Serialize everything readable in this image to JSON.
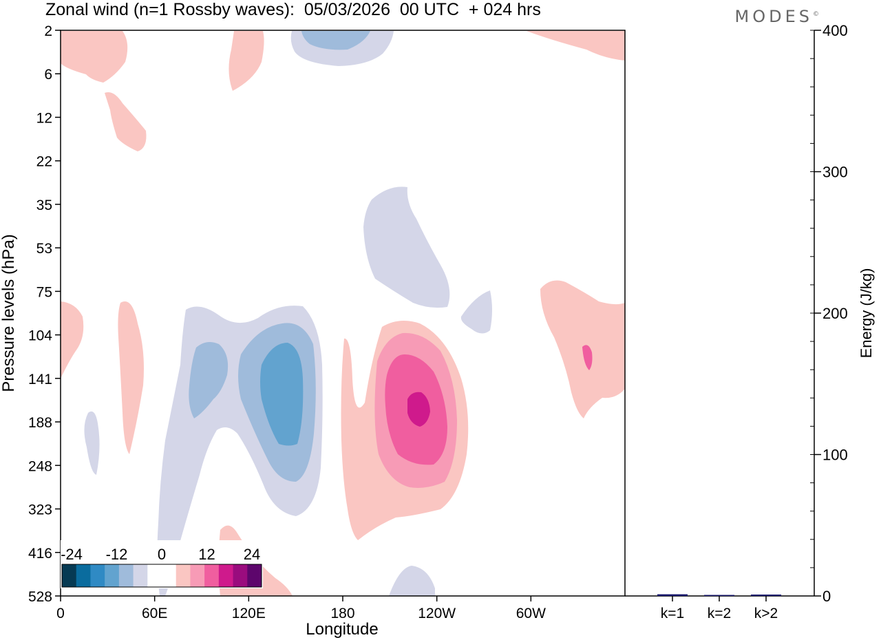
{
  "title": "Zonal wind (n=1 Rossby waves):  05/03/2026  00 UTC  + 024 hrs",
  "logo": "MODES",
  "logo_mark": "©",
  "chart_data": [
    {
      "type": "contour",
      "xlabel": "Longitude",
      "ylabel": "Pressure levels (hPa)",
      "x_ticks": [
        "0",
        "60E",
        "120E",
        "180",
        "120W",
        "60W"
      ],
      "x_tick_values_deg": [
        0,
        60,
        120,
        180,
        240,
        300
      ],
      "x_range_deg": [
        0,
        360
      ],
      "y_ticks": [
        "2",
        "6",
        "12",
        "22",
        "35",
        "53",
        "75",
        "104",
        "141",
        "188",
        "248",
        "323",
        "416",
        "528"
      ],
      "colorbar": {
        "labels": [
          "-24",
          "-12",
          "0",
          "12",
          "24"
        ],
        "colors": [
          "#063a53",
          "#0a6c9e",
          "#2f8ac4",
          "#62a3cf",
          "#9fbbdb",
          "#d4d6e8",
          "#ffffff",
          "#ffffff",
          "#fac6c2",
          "#f79bb6",
          "#f05e9f",
          "#cf1a8c",
          "#9a0c7e",
          "#5d066c"
        ]
      },
      "colors": {
        "neg1": "#d4d6e8",
        "neg2": "#9fbbdb",
        "neg3": "#62a3cf",
        "pos1": "#fac6c2",
        "pos2": "#f79bb6",
        "pos3": "#f05e9f",
        "pos4": "#cf1a8c"
      }
    },
    {
      "type": "bar",
      "categories": [
        "k=1",
        "k=2",
        "k>2"
      ],
      "values": [
        1.2,
        0.5,
        1.0
      ],
      "ylabel": "Energy (J/kg)",
      "ylim": [
        0,
        400
      ],
      "y_ticks": [
        "0",
        "100",
        "200",
        "300",
        "400"
      ],
      "bar_color": "#1a1a6e"
    }
  ]
}
